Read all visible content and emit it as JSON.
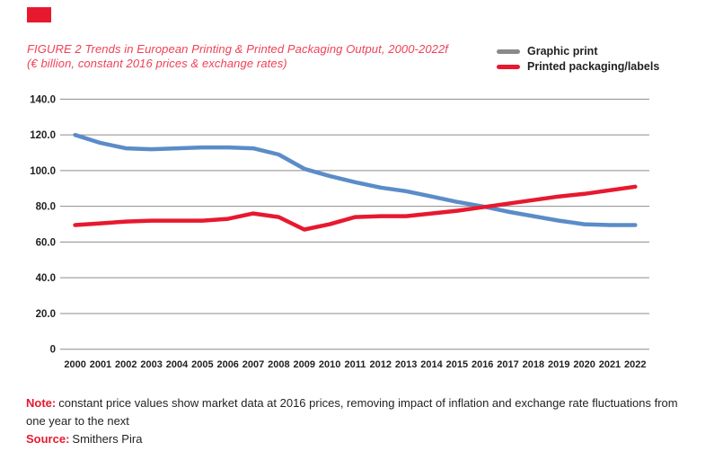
{
  "page": {
    "background": "#ffffff",
    "accent_red": "#e7192f",
    "title_color": "#ef4156",
    "text_dark": "#231f20",
    "gridline_color": "#8c8c8c"
  },
  "header": {
    "title_line1": "FIGURE 2 Trends in European Printing & Printed Packaging Output, 2000-2022f",
    "title_line2": "(€ billion, constant 2016 prices & exchange rates)"
  },
  "legend": {
    "items": [
      {
        "label": "Graphic print",
        "color": "#8a8a8c"
      },
      {
        "label": "Printed packaging/labels",
        "color": "#e7192f"
      }
    ]
  },
  "chart_data": {
    "type": "line",
    "title": "FIGURE 2 Trends in European Printing & Printed Packaging Output, 2000-2022f (€ billion, constant 2016 prices & exchange rates)",
    "xlabel": "",
    "ylabel": "",
    "ylim": [
      0,
      140
    ],
    "grid": "horizontal",
    "legend_position": "top-right",
    "x": [
      "2000",
      "2001",
      "2002",
      "2003",
      "2004",
      "2005",
      "2006",
      "2007",
      "2008",
      "2009",
      "2010",
      "2011",
      "2012",
      "2013",
      "2014",
      "2015",
      "2016",
      "2017",
      "2018",
      "2019",
      "2020",
      "2021",
      "2022"
    ],
    "y_ticks": [
      {
        "value": 140,
        "label": "140.0"
      },
      {
        "value": 120,
        "label": "120.0"
      },
      {
        "value": 100,
        "label": "100.0"
      },
      {
        "value": 80,
        "label": "80.0"
      },
      {
        "value": 60,
        "label": "60.0"
      },
      {
        "value": 40,
        "label": "40.0"
      },
      {
        "value": 20,
        "label": "20.0"
      },
      {
        "value": 0,
        "label": "0"
      }
    ],
    "series": [
      {
        "name": "Graphic print",
        "color": "#5b8cc8",
        "values": [
          120.0,
          115.5,
          112.5,
          112.0,
          112.5,
          113.0,
          113.0,
          112.5,
          109.0,
          101.0,
          97.0,
          93.5,
          90.5,
          88.5,
          85.5,
          82.5,
          80.0,
          77.0,
          74.5,
          72.0,
          70.0,
          69.5,
          69.5
        ]
      },
      {
        "name": "Printed packaging/labels",
        "color": "#e7192f",
        "values": [
          69.5,
          70.5,
          71.5,
          72.0,
          72.0,
          72.0,
          73.0,
          76.0,
          74.0,
          67.0,
          70.0,
          74.0,
          74.5,
          74.5,
          76.0,
          77.5,
          79.5,
          81.5,
          83.5,
          85.5,
          87.0,
          89.0,
          91.0
        ]
      }
    ]
  },
  "footer": {
    "note_label": "Note:",
    "note_text": "constant price values show market data at 2016 prices, removing impact of inflation and exchange rate fluctuations from one year to the next",
    "source_label": "Source:",
    "source_text": "Smithers Pira"
  }
}
